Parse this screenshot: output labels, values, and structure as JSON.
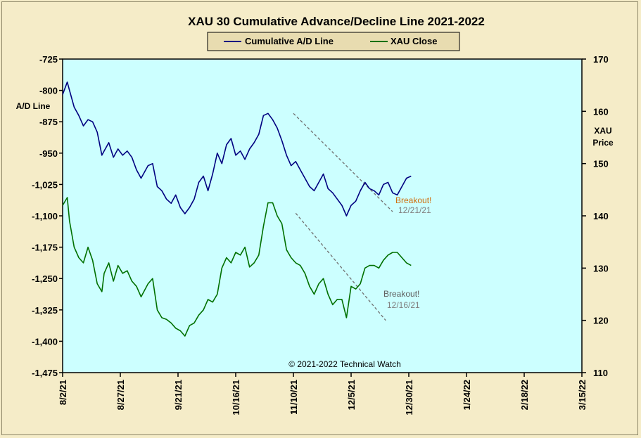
{
  "chart_data": {
    "type": "line",
    "title": "XAU 30 Cumulative  Advance/Decline  Line  2021-2022",
    "legend": {
      "placement": "top-center",
      "entries": [
        "Cumulative A/D Line",
        "XAU Close"
      ]
    },
    "y_left": {
      "label": [
        "A/D Line"
      ],
      "ylim": [
        -1475,
        -725
      ],
      "ticks": [
        "-725",
        "-800",
        "-875",
        "-950",
        "-1,025",
        "-1,100",
        "-1,175",
        "-1,250",
        "-1,325",
        "-1,400",
        "-1,475"
      ],
      "tick_values": [
        -725,
        -800,
        -875,
        -950,
        -1025,
        -1100,
        -1175,
        -1250,
        -1325,
        -1400,
        -1475
      ]
    },
    "y_right": {
      "label": [
        "XAU",
        "Price"
      ],
      "ylim": [
        110,
        170
      ],
      "ticks": [
        "170",
        "160",
        "150",
        "140",
        "130",
        "120",
        "110"
      ],
      "tick_values": [
        170,
        160,
        150,
        140,
        130,
        120,
        110
      ]
    },
    "x": {
      "range": [
        "2021-08-02",
        "2022-03-15"
      ],
      "ticks": [
        "8/2/21",
        "8/27/21",
        "9/21/21",
        "10/16/21",
        "11/10/21",
        "12/5/21",
        "12/30/21",
        "1/24/22",
        "2/18/22",
        "3/15/22"
      ],
      "tick_dates": [
        "2021-08-02",
        "2021-08-27",
        "2021-09-21",
        "2021-10-16",
        "2021-11-10",
        "2021-12-05",
        "2021-12-30",
        "2022-01-24",
        "2022-02-18",
        "2022-03-15"
      ]
    },
    "grid": false,
    "plot_background": "#ccffff",
    "series": [
      {
        "name": "Cumulative A/D Line",
        "axis": "left",
        "color": "#000080",
        "x": [
          "2021-08-02",
          "2021-08-04",
          "2021-08-05",
          "2021-08-07",
          "2021-08-09",
          "2021-08-11",
          "2021-08-13",
          "2021-08-15",
          "2021-08-17",
          "2021-08-19",
          "2021-08-20",
          "2021-08-22",
          "2021-08-24",
          "2021-08-26",
          "2021-08-28",
          "2021-08-30",
          "2021-09-01",
          "2021-09-03",
          "2021-09-05",
          "2021-09-08",
          "2021-09-10",
          "2021-09-12",
          "2021-09-14",
          "2021-09-16",
          "2021-09-18",
          "2021-09-20",
          "2021-09-22",
          "2021-09-24",
          "2021-09-26",
          "2021-09-28",
          "2021-09-30",
          "2021-10-02",
          "2021-10-04",
          "2021-10-06",
          "2021-10-08",
          "2021-10-10",
          "2021-10-12",
          "2021-10-14",
          "2021-10-16",
          "2021-10-18",
          "2021-10-20",
          "2021-10-22",
          "2021-10-24",
          "2021-10-26",
          "2021-10-28",
          "2021-10-30",
          "2021-11-01",
          "2021-11-03",
          "2021-11-05",
          "2021-11-07",
          "2021-11-09",
          "2021-11-11",
          "2021-11-13",
          "2021-11-15",
          "2021-11-17",
          "2021-11-19",
          "2021-11-21",
          "2021-11-23",
          "2021-11-25",
          "2021-11-27",
          "2021-11-29",
          "2021-12-01",
          "2021-12-03",
          "2021-12-05",
          "2021-12-07",
          "2021-12-09",
          "2021-12-11",
          "2021-12-13",
          "2021-12-15",
          "2021-12-17",
          "2021-12-19",
          "2021-12-21",
          "2021-12-23",
          "2021-12-25",
          "2021-12-27",
          "2021-12-29",
          "2021-12-31"
        ],
        "y": [
          -810,
          -780,
          -800,
          -840,
          -860,
          -885,
          -870,
          -875,
          -900,
          -955,
          -945,
          -925,
          -960,
          -940,
          -955,
          -945,
          -960,
          -990,
          -1010,
          -980,
          -975,
          -1030,
          -1040,
          -1060,
          -1070,
          -1050,
          -1080,
          -1095,
          -1080,
          -1060,
          -1020,
          -1005,
          -1040,
          -1000,
          -950,
          -975,
          -930,
          -915,
          -955,
          -945,
          -965,
          -940,
          -925,
          -905,
          -860,
          -855,
          -870,
          -890,
          -920,
          -955,
          -980,
          -970,
          -990,
          -1010,
          -1030,
          -1040,
          -1020,
          -1000,
          -1035,
          -1045,
          -1060,
          -1075,
          -1100,
          -1075,
          -1065,
          -1040,
          -1020,
          -1035,
          -1040,
          -1050,
          -1025,
          -1020,
          -1045,
          -1050,
          -1030,
          -1010,
          -1005
        ],
        "label": "",
        "note": ""
      },
      {
        "name": "XAU Close",
        "axis": "right",
        "color": "#007000",
        "x": [
          "2021-08-02",
          "2021-08-04",
          "2021-08-05",
          "2021-08-07",
          "2021-08-09",
          "2021-08-11",
          "2021-08-13",
          "2021-08-15",
          "2021-08-17",
          "2021-08-19",
          "2021-08-20",
          "2021-08-22",
          "2021-08-24",
          "2021-08-26",
          "2021-08-28",
          "2021-08-30",
          "2021-09-01",
          "2021-09-03",
          "2021-09-05",
          "2021-09-08",
          "2021-09-10",
          "2021-09-12",
          "2021-09-14",
          "2021-09-16",
          "2021-09-18",
          "2021-09-20",
          "2021-09-22",
          "2021-09-24",
          "2021-09-26",
          "2021-09-28",
          "2021-09-30",
          "2021-10-02",
          "2021-10-04",
          "2021-10-06",
          "2021-10-08",
          "2021-10-10",
          "2021-10-12",
          "2021-10-14",
          "2021-10-16",
          "2021-10-18",
          "2021-10-20",
          "2021-10-22",
          "2021-10-24",
          "2021-10-26",
          "2021-10-28",
          "2021-10-30",
          "2021-11-01",
          "2021-11-03",
          "2021-11-05",
          "2021-11-07",
          "2021-11-09",
          "2021-11-11",
          "2021-11-13",
          "2021-11-15",
          "2021-11-17",
          "2021-11-19",
          "2021-11-21",
          "2021-11-23",
          "2021-11-25",
          "2021-11-27",
          "2021-11-29",
          "2021-12-01",
          "2021-12-03",
          "2021-12-05",
          "2021-12-07",
          "2021-12-09",
          "2021-12-11",
          "2021-12-13",
          "2021-12-15",
          "2021-12-17",
          "2021-12-19",
          "2021-12-21",
          "2021-12-23",
          "2021-12-25",
          "2021-12-27",
          "2021-12-29",
          "2021-12-31"
        ],
        "y": [
          142,
          143.5,
          139,
          134,
          132,
          131,
          134,
          131.5,
          127,
          125.5,
          129,
          131,
          127.5,
          130.5,
          129,
          129.5,
          127.5,
          126.5,
          124.5,
          127,
          128,
          122,
          120.5,
          120.2,
          119.5,
          118.5,
          118,
          117,
          119,
          119.5,
          121,
          122,
          124,
          123.5,
          125,
          130,
          132,
          131,
          133,
          132.5,
          134,
          130.2,
          131,
          132.5,
          138,
          142.5,
          142.5,
          140,
          138.5,
          133.5,
          132,
          131,
          130.5,
          129,
          126.5,
          125,
          127,
          128,
          125,
          123,
          124,
          124,
          120.5,
          126.5,
          126,
          127,
          130,
          130.5,
          130.5,
          130,
          131.5,
          132.5,
          133,
          133,
          132,
          131,
          130.5
        ],
        "label": "",
        "note": ""
      }
    ],
    "trendlines": [
      {
        "axis": "left",
        "from": {
          "x": "2021-11-10",
          "y": -855
        },
        "to": {
          "x": "2021-12-23",
          "y": -1090
        }
      },
      {
        "axis": "right",
        "from": {
          "x": "2021-11-11",
          "y": 140.5
        },
        "to": {
          "x": "2021-12-20",
          "y": 120
        }
      }
    ],
    "annotations": [
      {
        "text": "Breakout!",
        "color": "#d07010"
      },
      {
        "text": "12/21/21",
        "color": "#808080"
      },
      {
        "text": "Breakout!",
        "color": "#606060"
      },
      {
        "text": "12/16/21",
        "color": "#808080"
      }
    ],
    "copyright": "© 2021-2022  Technical  Watch"
  }
}
